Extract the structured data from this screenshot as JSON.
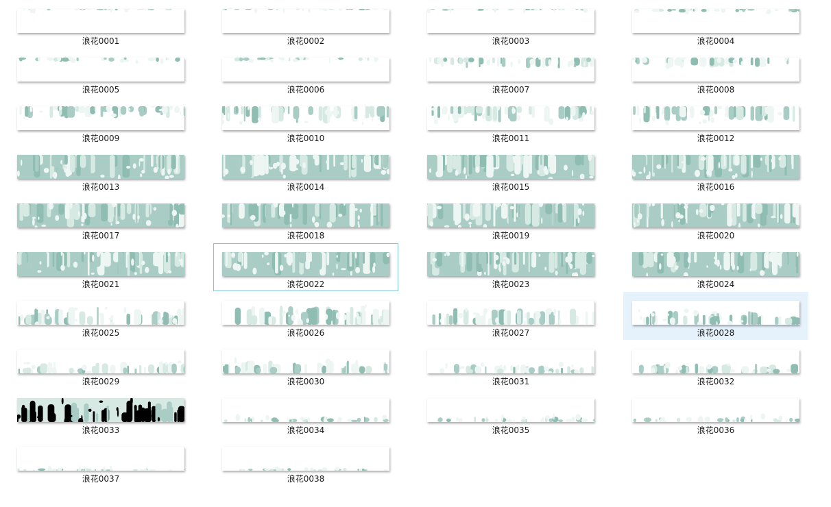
{
  "colors": {
    "wave_dark": "#8fbdb2",
    "wave_mid": "#a9cdc4",
    "wave_light": "#d6e9e3",
    "wave_pale": "#eef6f3",
    "ink_black": "#000000",
    "focus_border": "#84c6d6",
    "selection_bg": "#e5f1fb"
  },
  "files": [
    {
      "name": "浪花0001",
      "icon": "image-thumbnail",
      "coverage": 0.07,
      "state": "normal"
    },
    {
      "name": "浪花0002",
      "icon": "image-thumbnail",
      "coverage": 0.06,
      "state": "normal"
    },
    {
      "name": "浪花0003",
      "icon": "image-thumbnail",
      "coverage": 0.08,
      "state": "normal"
    },
    {
      "name": "浪花0004",
      "icon": "image-thumbnail",
      "coverage": 0.15,
      "state": "normal"
    },
    {
      "name": "浪花0005",
      "icon": "image-thumbnail",
      "coverage": 0.18,
      "state": "normal"
    },
    {
      "name": "浪花0006",
      "icon": "image-thumbnail",
      "coverage": 0.16,
      "state": "normal"
    },
    {
      "name": "浪花0007",
      "icon": "image-thumbnail",
      "coverage": 0.45,
      "state": "normal"
    },
    {
      "name": "浪花0008",
      "icon": "image-thumbnail",
      "coverage": 0.42,
      "state": "normal"
    },
    {
      "name": "浪花0009",
      "icon": "image-thumbnail",
      "coverage": 0.5,
      "state": "normal"
    },
    {
      "name": "浪花0010",
      "icon": "image-thumbnail",
      "coverage": 0.72,
      "state": "normal"
    },
    {
      "name": "浪花0011",
      "icon": "image-thumbnail",
      "coverage": 0.7,
      "state": "normal"
    },
    {
      "name": "浪花0012",
      "icon": "image-thumbnail",
      "coverage": 0.7,
      "state": "normal"
    },
    {
      "name": "浪花0013",
      "icon": "image-thumbnail",
      "coverage": 1.0,
      "state": "normal"
    },
    {
      "name": "浪花0014",
      "icon": "image-thumbnail",
      "coverage": 1.0,
      "state": "normal"
    },
    {
      "name": "浪花0015",
      "icon": "image-thumbnail",
      "coverage": 1.0,
      "state": "normal"
    },
    {
      "name": "浪花0016",
      "icon": "image-thumbnail",
      "coverage": 1.0,
      "state": "normal"
    },
    {
      "name": "浪花0017",
      "icon": "image-thumbnail",
      "coverage": 1.0,
      "state": "normal"
    },
    {
      "name": "浪花0018",
      "icon": "image-thumbnail",
      "coverage": 1.0,
      "state": "normal"
    },
    {
      "name": "浪花0019",
      "icon": "image-thumbnail",
      "coverage": 1.0,
      "state": "normal"
    },
    {
      "name": "浪花0020",
      "icon": "image-thumbnail",
      "coverage": 1.0,
      "state": "normal"
    },
    {
      "name": "浪花0021",
      "icon": "image-thumbnail",
      "coverage": 1.0,
      "state": "normal"
    },
    {
      "name": "浪花0022",
      "icon": "image-thumbnail",
      "coverage": 1.0,
      "state": "focused"
    },
    {
      "name": "浪花0023",
      "icon": "image-thumbnail",
      "coverage": 1.0,
      "state": "normal"
    },
    {
      "name": "浪花0024",
      "icon": "image-thumbnail",
      "coverage": 1.0,
      "state": "normal"
    },
    {
      "name": "浪花0025",
      "icon": "image-thumbnail",
      "coverage": -0.75,
      "state": "normal"
    },
    {
      "name": "浪花0026",
      "icon": "image-thumbnail",
      "coverage": -0.8,
      "state": "normal"
    },
    {
      "name": "浪花0027",
      "icon": "image-thumbnail",
      "coverage": -0.7,
      "state": "normal"
    },
    {
      "name": "浪花0028",
      "icon": "image-thumbnail",
      "coverage": -0.6,
      "state": "selected"
    },
    {
      "name": "浪花0029",
      "icon": "image-thumbnail",
      "coverage": -0.5,
      "state": "normal"
    },
    {
      "name": "浪花0030",
      "icon": "image-thumbnail",
      "coverage": -0.55,
      "state": "normal"
    },
    {
      "name": "浪花0031",
      "icon": "image-thumbnail",
      "coverage": -0.4,
      "state": "normal"
    },
    {
      "name": "浪花0032",
      "icon": "image-thumbnail",
      "coverage": -0.42,
      "state": "normal"
    },
    {
      "name": "浪花0033",
      "icon": "image-thumbnail",
      "coverage": -0.9,
      "state": "normal",
      "variant": "black"
    },
    {
      "name": "浪花0034",
      "icon": "image-thumbnail",
      "coverage": -0.22,
      "state": "normal"
    },
    {
      "name": "浪花0035",
      "icon": "image-thumbnail",
      "coverage": -0.25,
      "state": "normal"
    },
    {
      "name": "浪花0036",
      "icon": "image-thumbnail",
      "coverage": -0.24,
      "state": "normal"
    },
    {
      "name": "浪花0037",
      "icon": "image-thumbnail",
      "coverage": -0.1,
      "state": "normal"
    },
    {
      "name": "浪花0038",
      "icon": "image-thumbnail",
      "coverage": -0.12,
      "state": "normal"
    }
  ]
}
